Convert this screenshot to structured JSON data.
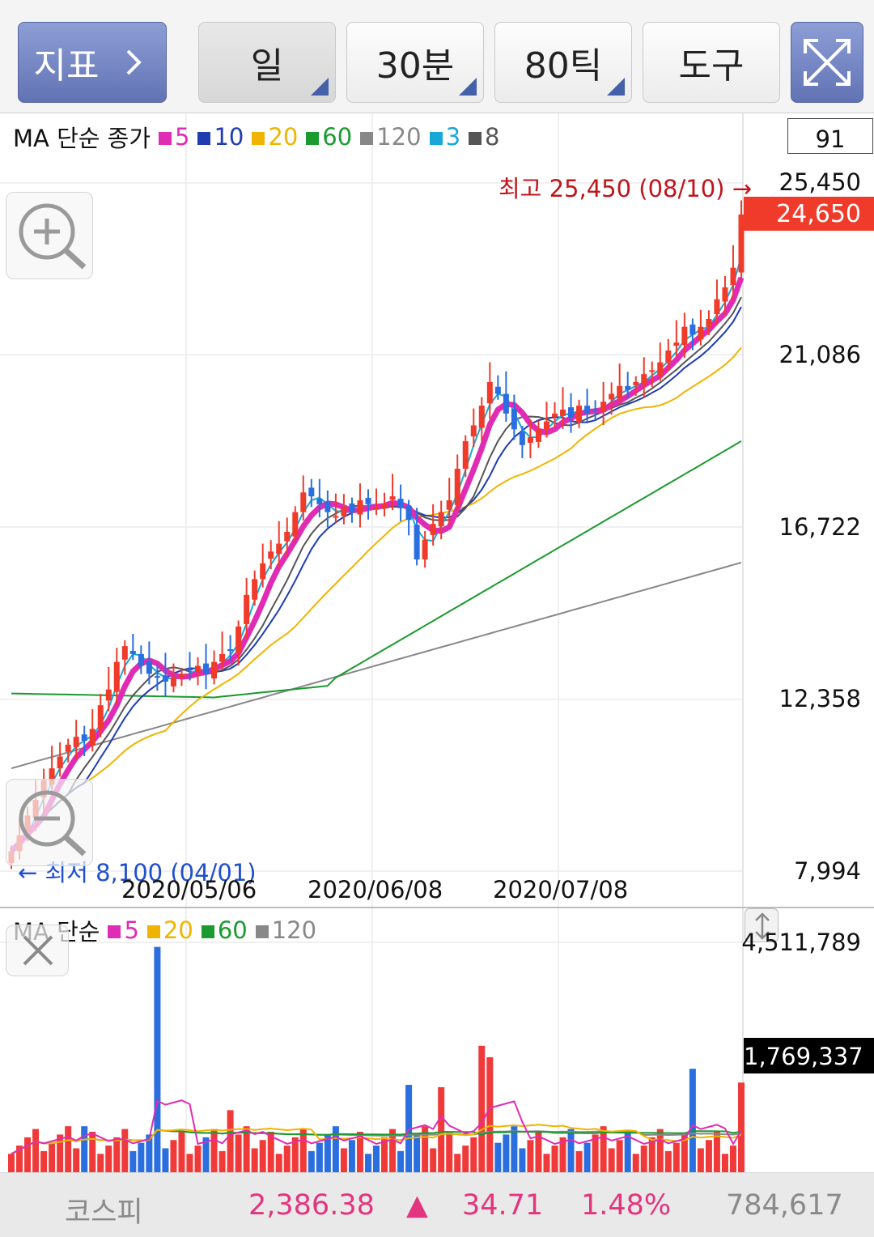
{
  "toolbar": {
    "indicator_label": "지표",
    "period_day": "일",
    "period_30min": "30분",
    "period_80tick": "80틱",
    "tools_label": "도구"
  },
  "main_legend": {
    "prefix": "MA 단순 종가",
    "items": [
      {
        "label": "5",
        "color": "#e02bb4"
      },
      {
        "label": "10",
        "color": "#1f3cb0"
      },
      {
        "label": "20",
        "color": "#f0b400"
      },
      {
        "label": "60",
        "color": "#1a9a2f"
      },
      {
        "label": "120",
        "color": "#888888"
      },
      {
        "label": "3",
        "color": "#18a8d8"
      },
      {
        "label": "8",
        "color": "#555555"
      }
    ]
  },
  "count_box": "91",
  "price_axis": [
    "25,450",
    "21,086",
    "16,722",
    "12,358",
    "7,994"
  ],
  "current_price": "24,650",
  "high_annotation": "최고 25,450 (08/10) →",
  "low_annotation": "← 최저 8,100 (04/01)",
  "date_axis": [
    "2020/05/06",
    "2020/06/08",
    "2020/07/08"
  ],
  "volume_legend": {
    "prefix": "MA 단순",
    "items": [
      {
        "label": "5",
        "color": "#e02bb4"
      },
      {
        "label": "20",
        "color": "#f0b400"
      },
      {
        "label": "60",
        "color": "#1a9a2f"
      },
      {
        "label": "120",
        "color": "#888888"
      }
    ]
  },
  "volume_axis_top": "4,511,789",
  "volume_current": "1,769,337",
  "bottom_bar": {
    "index_name": "코스피",
    "index_value": "2,386.38",
    "change_arrow": "▲",
    "change_value": "34.71",
    "change_pct": "1.48%",
    "volume": "784,617"
  },
  "colors": {
    "up": "#f03a2a",
    "down": "#2a6ee0",
    "current_price_bg": "#f03a2a",
    "high_text": "#c0141b",
    "low_text": "#1f4fd0",
    "index_pink": "#e3357f",
    "bottom_gray": "#8a8a8a"
  },
  "chart_data": {
    "type": "candlestick",
    "price_range": [
      7994,
      25450
    ],
    "closes": [
      8500,
      8900,
      9400,
      9800,
      10300,
      10600,
      10900,
      11200,
      11400,
      11300,
      11600,
      12200,
      12600,
      13300,
      13700,
      13500,
      13200,
      13000,
      12900,
      12800,
      12900,
      13000,
      13100,
      13200,
      13000,
      13300,
      13500,
      13600,
      14200,
      15000,
      15400,
      15800,
      16100,
      16300,
      16600,
      17100,
      17600,
      17500,
      17300,
      17100,
      17000,
      17200,
      17100,
      17400,
      17300,
      17200,
      17300,
      17500,
      17200,
      16900,
      15900,
      16400,
      16800,
      17100,
      17400,
      18200,
      18900,
      19300,
      19800,
      20400,
      20100,
      19600,
      19200,
      18800,
      19000,
      19200,
      19400,
      19600,
      19700,
      19500,
      19800,
      19600,
      19700,
      19900,
      20100,
      20300,
      20200,
      20400,
      20600,
      20700,
      20900,
      21200,
      21400,
      21800,
      21600,
      21800,
      22000,
      22500,
      22800,
      23300,
      24650
    ]
  }
}
